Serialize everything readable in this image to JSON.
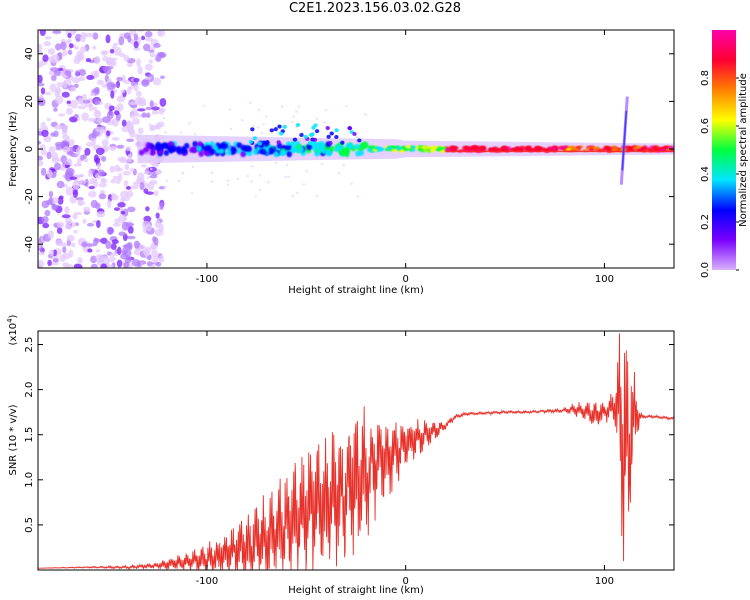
{
  "page": {
    "title": "C2E1.2023.156.03.02.G28"
  },
  "chart_data": [
    {
      "type": "heatmap",
      "xlabel": "Height of straight line (km)",
      "ylabel": "Frequency (Hz)",
      "xlim": [
        -185,
        135
      ],
      "ylim": [
        -50,
        50
      ],
      "xticks": [
        -100,
        0,
        100
      ],
      "yticks": [
        -40,
        -20,
        0,
        20,
        40
      ],
      "colorbar": {
        "label": "Normalized spectral amplitude",
        "range": [
          0,
          1
        ],
        "ticks": [
          "0.0",
          "0.2",
          "0.4",
          "0.6",
          "0.8"
        ],
        "tick_values": [
          0,
          0.2,
          0.4,
          0.6,
          0.8
        ],
        "colormap": [
          "#d9b3ff",
          "#7a00ff",
          "#0000ff",
          "#00e5ff",
          "#00ff40",
          "#ffff00",
          "#ff8000",
          "#ff0033",
          "#ff00aa"
        ]
      },
      "features": [
        {
          "name": "noise-region",
          "x_range": [
            -185,
            -122
          ],
          "freq_range": [
            -50,
            50
          ]
        },
        {
          "name": "spectral-line",
          "x_range": [
            -135,
            135
          ],
          "freq_center": 0
        },
        {
          "name": "spike",
          "x": 110,
          "freq_range": [
            -15,
            22
          ]
        }
      ]
    },
    {
      "type": "line",
      "xlabel": "Height of straight line (km)",
      "ylabel": "SNR (10 * v/v)",
      "y_multiplier": "(x10",
      "y_multiplier_exp": "4",
      "y_multiplier_close": ")",
      "xlim": [
        -185,
        135
      ],
      "ylim": [
        0,
        2.65
      ],
      "xticks": [
        -100,
        0,
        100
      ],
      "yticks": [
        0.5,
        1.0,
        1.5,
        2.0,
        2.5
      ],
      "ytick_labels": [
        "0.5",
        "1.0",
        "1.5",
        "2.0",
        "2.5"
      ],
      "color": "#e8312a",
      "series": [
        {
          "x": [
            -185,
            -160,
            -140,
            -125,
            -115,
            -100,
            -90,
            -80,
            -70,
            -60,
            -50,
            -40,
            -30,
            -20,
            -15,
            -10,
            -5,
            0,
            5,
            10,
            15,
            20,
            25,
            30,
            40,
            50,
            60,
            70,
            80,
            85,
            90,
            95,
            100,
            105,
            108,
            110,
            112,
            114,
            116,
            118,
            120,
            125,
            130,
            135
          ],
          "y": [
            0.02,
            0.03,
            0.03,
            0.05,
            0.08,
            0.12,
            0.18,
            0.25,
            0.35,
            0.5,
            0.65,
            0.75,
            0.9,
            1.05,
            1.2,
            1.25,
            1.3,
            1.4,
            1.45,
            1.5,
            1.55,
            1.6,
            1.7,
            1.73,
            1.74,
            1.75,
            1.75,
            1.76,
            1.77,
            1.78,
            1.76,
            1.72,
            1.75,
            1.8,
            1.9,
            1.2,
            1.4,
            1.6,
            1.72,
            1.7,
            1.7,
            1.7,
            1.69,
            1.68
          ],
          "envelope": [
            0.0,
            0.01,
            0.02,
            0.04,
            0.1,
            0.18,
            0.28,
            0.4,
            0.55,
            0.7,
            0.8,
            0.85,
            0.9,
            0.85,
            0.7,
            0.55,
            0.4,
            0.3,
            0.25,
            0.2,
            0.12,
            0.06,
            0.03,
            0.02,
            0.02,
            0.02,
            0.02,
            0.02,
            0.03,
            0.08,
            0.12,
            0.18,
            0.15,
            0.2,
            1.2,
            1.8,
            1.6,
            1.0,
            0.4,
            0.05,
            0.02,
            0.02,
            0.02,
            0.02
          ]
        }
      ]
    }
  ]
}
